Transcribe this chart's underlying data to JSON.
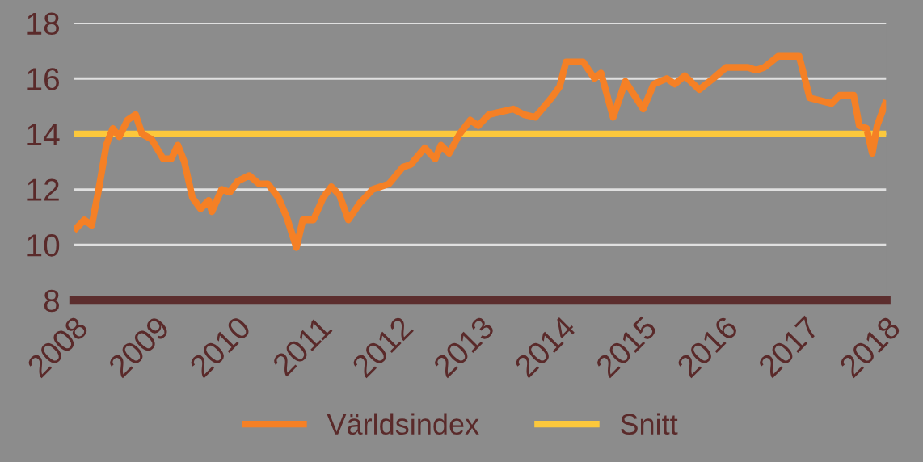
{
  "chart_data": {
    "type": "line",
    "x": [
      2008.03,
      2008.13,
      2008.22,
      2008.3,
      2008.4,
      2008.48,
      2008.56,
      2008.66,
      2008.76,
      2008.84,
      2008.96,
      2009.1,
      2009.2,
      2009.28,
      2009.36,
      2009.46,
      2009.56,
      2009.66,
      2009.7,
      2009.82,
      2009.92,
      2010.02,
      2010.16,
      2010.28,
      2010.39,
      2010.52,
      2010.62,
      2010.74,
      2010.82,
      2010.95,
      2011.07,
      2011.17,
      2011.27,
      2011.38,
      2011.52,
      2011.68,
      2011.88,
      2012.05,
      2012.15,
      2012.32,
      2012.45,
      2012.52,
      2012.62,
      2012.75,
      2012.88,
      2012.98,
      2013.11,
      2013.41,
      2013.54,
      2013.68,
      2013.88,
      2013.98,
      2014.06,
      2014.27,
      2014.41,
      2014.49,
      2014.64,
      2014.79,
      2015.01,
      2015.14,
      2015.3,
      2015.4,
      2015.52,
      2015.7,
      2015.87,
      2016.03,
      2016.3,
      2016.4,
      2016.5,
      2016.67,
      2016.93,
      2017.06,
      2017.33,
      2017.43,
      2017.6,
      2017.67,
      2017.76,
      2017.83,
      2017.89,
      2017.99
    ],
    "series": [
      {
        "name": "Världsindex",
        "color": "#f58025",
        "values": [
          10.6,
          10.9,
          10.7,
          11.9,
          13.6,
          14.2,
          13.9,
          14.5,
          14.7,
          14.0,
          13.8,
          13.1,
          13.1,
          13.6,
          13.0,
          11.7,
          11.3,
          11.6,
          11.2,
          12.0,
          11.9,
          12.3,
          12.5,
          12.2,
          12.2,
          11.7,
          11.0,
          9.9,
          10.9,
          10.9,
          11.7,
          12.1,
          11.8,
          10.9,
          11.5,
          12.0,
          12.2,
          12.8,
          12.9,
          13.5,
          13.1,
          13.6,
          13.3,
          14.0,
          14.5,
          14.3,
          14.7,
          14.9,
          14.7,
          14.6,
          15.3,
          15.7,
          16.6,
          16.6,
          16.0,
          16.2,
          14.6,
          15.9,
          14.9,
          15.8,
          16.0,
          15.8,
          16.1,
          15.6,
          16.0,
          16.4,
          16.4,
          16.3,
          16.4,
          16.8,
          16.8,
          15.3,
          15.1,
          15.4,
          15.4,
          14.3,
          14.2,
          13.3,
          14.3,
          15.1
        ]
      },
      {
        "name": "Snitt",
        "color": "#fcc83c",
        "x": [
          2008,
          2018
        ],
        "values": [
          14.0,
          14.0
        ]
      }
    ],
    "xlim": [
      2008,
      2018
    ],
    "xticks": [
      2008,
      2009,
      2010,
      2011,
      2012,
      2013,
      2014,
      2015,
      2016,
      2017,
      2018
    ],
    "ylim": [
      8,
      18
    ],
    "yticks": [
      8,
      10,
      12,
      14,
      16,
      18
    ],
    "grid": "y",
    "legend": "bottom",
    "marker": "none",
    "line_style": "solid"
  }
}
